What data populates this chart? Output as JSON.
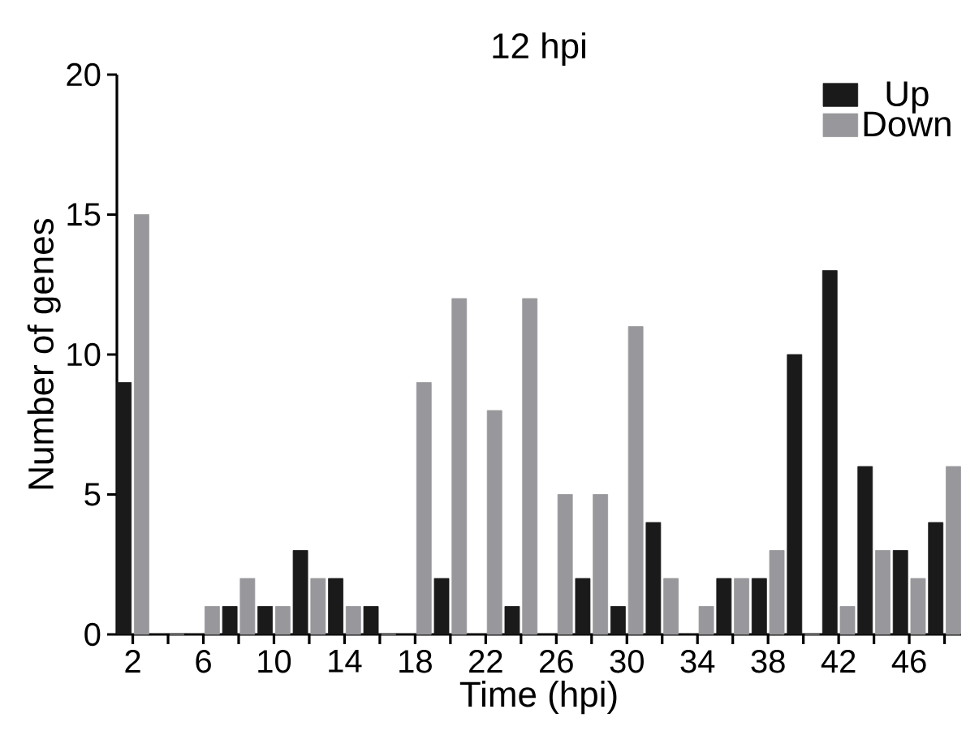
{
  "chart_data": {
    "type": "bar",
    "title": "12 hpi",
    "xlabel": "Time (hpi)",
    "ylabel": "Number of genes",
    "categories": [
      "2",
      null,
      "6",
      null,
      "10",
      null,
      "14",
      null,
      "18",
      null,
      "22",
      null,
      "26",
      null,
      "30",
      null,
      "34",
      null,
      "38",
      null,
      "42",
      null,
      "46",
      null
    ],
    "series": [
      {
        "name": "Up",
        "color": "#1a1a1a",
        "values": [
          9,
          0,
          0,
          1,
          1,
          3,
          2,
          1,
          0,
          2,
          0,
          1,
          0,
          2,
          1,
          4,
          0,
          2,
          2,
          10,
          13,
          6,
          3,
          4
        ]
      },
      {
        "name": "Down",
        "color": "#98989c",
        "values": [
          15,
          0,
          1,
          2,
          1,
          2,
          1,
          0,
          9,
          12,
          8,
          12,
          5,
          5,
          11,
          2,
          1,
          2,
          3,
          0,
          1,
          3,
          2,
          6
        ]
      }
    ],
    "ylim": [
      0,
      20
    ],
    "yticks": [
      0,
      5,
      10,
      15,
      20
    ],
    "grid": false,
    "legend": "top right"
  }
}
